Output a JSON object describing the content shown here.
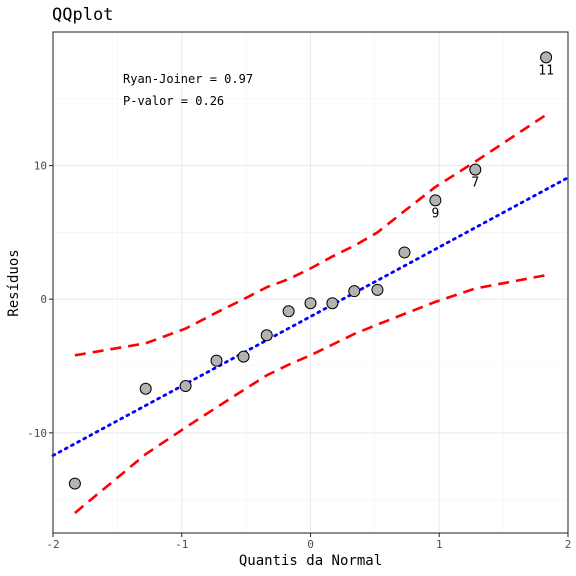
{
  "chart_data": {
    "type": "scatter",
    "title": "QQplot",
    "xlabel": "Quantis da Normal",
    "ylabel": "Resíduos",
    "xlim": [
      -2,
      2
    ],
    "ylim": [
      -17.5,
      20
    ],
    "x_ticks": [
      -2,
      -1,
      0,
      1,
      2
    ],
    "x_tick_labels": [
      "-2",
      "-1",
      "0",
      "1",
      "2"
    ],
    "y_ticks": [
      -10,
      0,
      10
    ],
    "y_tick_labels": [
      "-10",
      "0",
      "10"
    ],
    "grid": true,
    "annotations": [
      "Ryan-Joiner = 0.97",
      "P-valor = 0.26"
    ],
    "points": {
      "x": [
        -1.83,
        -1.28,
        -0.97,
        -0.73,
        -0.52,
        -0.34,
        -0.17,
        0.0,
        0.17,
        0.34,
        0.52,
        0.73,
        0.97,
        1.28,
        1.83
      ],
      "y": [
        -13.8,
        -6.7,
        -6.5,
        -4.6,
        -4.3,
        -2.7,
        -0.9,
        -0.3,
        -0.3,
        0.6,
        0.7,
        3.5,
        7.4,
        9.7,
        18.1
      ]
    },
    "point_labels": [
      {
        "index": 12,
        "label": "9"
      },
      {
        "index": 13,
        "label": "7"
      },
      {
        "index": 14,
        "label": "11"
      }
    ],
    "reference_line": {
      "intercept": -1.3,
      "slope": 5.2,
      "style": "dotted",
      "color": "#0000ff"
    },
    "envelope": {
      "style": "dashed",
      "color": "#ff0000",
      "x": [
        -1.83,
        -1.28,
        -0.97,
        -0.73,
        -0.52,
        -0.34,
        -0.17,
        0.0,
        0.17,
        0.34,
        0.52,
        0.73,
        0.97,
        1.28,
        1.83
      ],
      "upper": [
        -4.2,
        -3.3,
        -2.2,
        -1.0,
        0.0,
        0.9,
        1.5,
        2.3,
        3.2,
        4.0,
        5.0,
        6.6,
        8.4,
        10.3,
        13.8
      ],
      "lower": [
        -16.0,
        -11.6,
        -9.6,
        -8.1,
        -6.8,
        -5.7,
        -4.9,
        -4.2,
        -3.4,
        -2.6,
        -1.9,
        -1.1,
        -0.2,
        0.8,
        1.8
      ]
    }
  }
}
